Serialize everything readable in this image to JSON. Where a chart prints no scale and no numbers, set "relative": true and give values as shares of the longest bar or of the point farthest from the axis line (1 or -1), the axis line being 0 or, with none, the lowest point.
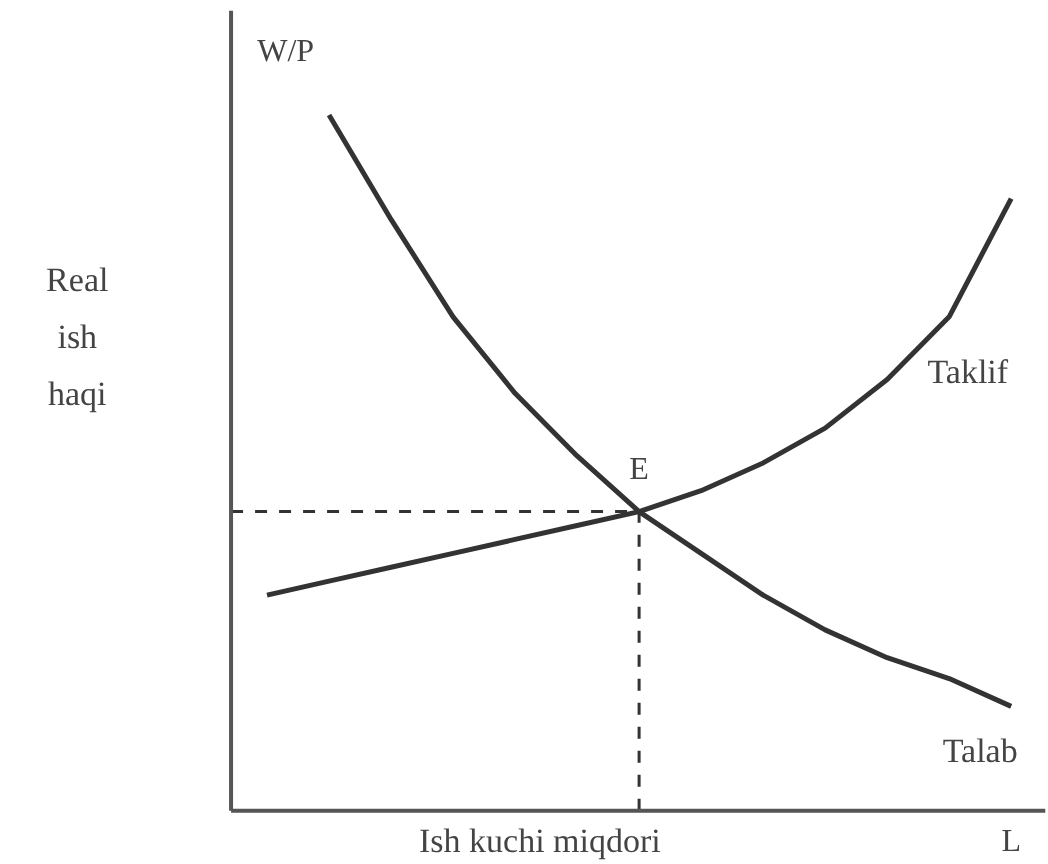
{
  "chart_data": {
    "type": "line",
    "relative": true,
    "ylabel": "Real\nish\nhaqi",
    "xlabel": "Ish kuchi miqdori",
    "annotations": [
      "W/P",
      "L",
      "E"
    ],
    "categories": [
      null,
      null,
      null,
      null,
      null,
      null,
      null,
      null,
      null,
      null,
      null,
      null,
      null
    ],
    "series": [
      {
        "name": "Taklif",
        "color": "#333333",
        "values": [
          0.31,
          0.33,
          0.35,
          0.37,
          0.39,
          0.41,
          0.43,
          0.46,
          0.5,
          0.55,
          0.62,
          0.71,
          0.88
        ]
      },
      {
        "name": "Talab",
        "color": "#333333",
        "values": [
          null,
          1.0,
          0.85,
          0.71,
          0.6,
          0.51,
          0.43,
          0.37,
          0.31,
          0.26,
          0.22,
          0.19,
          0.15
        ]
      }
    ],
    "ref_lines": [
      {
        "axis": "y",
        "value": 0.43,
        "line_style": "dashed"
      }
    ],
    "line_style": "solid",
    "marker": "none",
    "grid": false
  }
}
